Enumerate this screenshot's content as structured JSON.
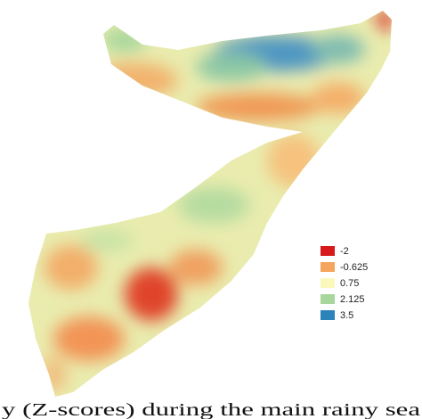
{
  "legend": {
    "items": [
      {
        "label": "-2",
        "color": "#d7191c"
      },
      {
        "label": "-0.625",
        "color": "#f4a55e"
      },
      {
        "label": "0.75",
        "color": "#fbf8be"
      },
      {
        "label": "2.125",
        "color": "#a8d79c"
      },
      {
        "label": "3.5",
        "color": "#2b83ba"
      }
    ]
  },
  "caption": "y (Z-scores) during the main rainy sea"
}
